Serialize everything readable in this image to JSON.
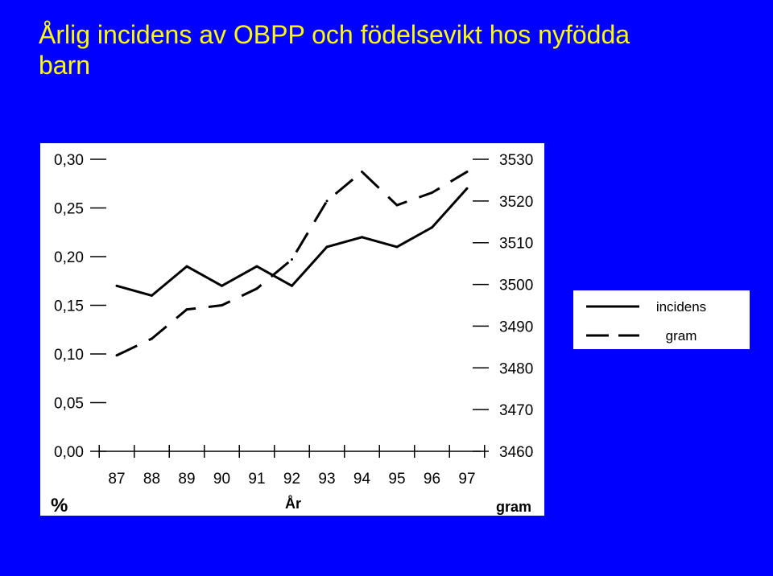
{
  "title": "Årlig incidens av OBPP och födelsevikt hos nyfödda barn",
  "colors": {
    "background": "#0000ff",
    "title": "#ffff00",
    "plot": "#ffffff",
    "lines": "#000000"
  },
  "chart_data": {
    "type": "line",
    "title": "Årlig incidens av OBPP och födelsevikt hos nyfödda barn",
    "xlabel": "År",
    "ylabel": "%",
    "y2label": "gram",
    "categories": [
      "87",
      "88",
      "89",
      "90",
      "91",
      "92",
      "93",
      "94",
      "95",
      "96",
      "97"
    ],
    "yticks": [
      "0,00",
      "0,05",
      "0,10",
      "0,15",
      "0,20",
      "0,25",
      "0,30"
    ],
    "y2ticks": [
      "3460",
      "3470",
      "3480",
      "3490",
      "3500",
      "3510",
      "3520",
      "3530"
    ],
    "ylim": [
      0,
      0.3
    ],
    "y2lim": [
      3460,
      3530
    ],
    "legend_position": "right",
    "series": [
      {
        "name": "incidens",
        "axis": "left",
        "style": "solid",
        "values": [
          0.17,
          0.16,
          0.19,
          0.17,
          0.19,
          0.17,
          0.21,
          0.22,
          0.21,
          0.23,
          0.27
        ]
      },
      {
        "name": "gram",
        "axis": "right",
        "style": "dashed",
        "values": [
          3483,
          3487,
          3494,
          3495,
          3499,
          3506,
          3520,
          3527,
          3519,
          3522,
          3527
        ]
      }
    ]
  }
}
